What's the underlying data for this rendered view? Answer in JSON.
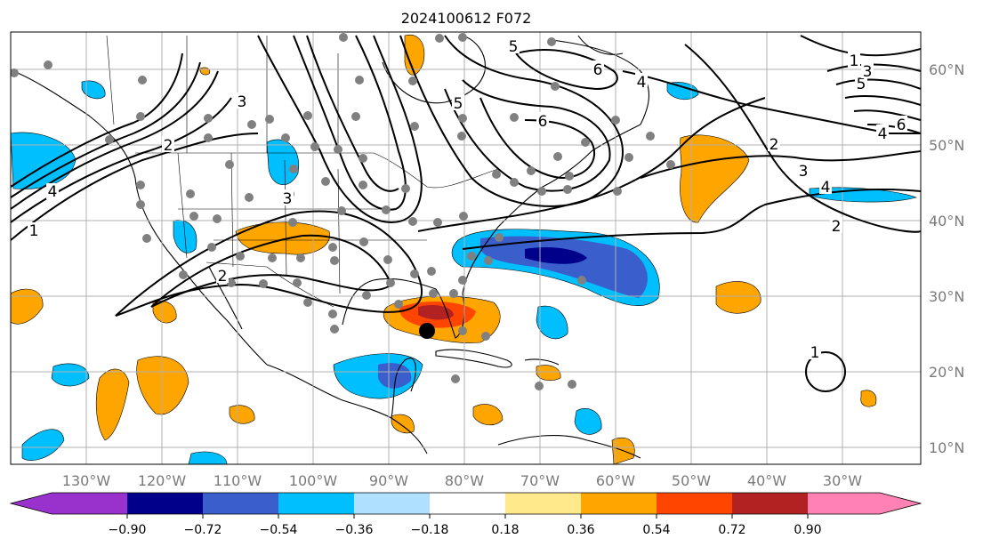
{
  "title": "2024100612 F072",
  "map": {
    "lon_labels": [
      "130°W",
      "120°W",
      "110°W",
      "100°W",
      "90°W",
      "80°W",
      "70°W",
      "60°W",
      "50°W",
      "40°W",
      "30°W"
    ],
    "lat_labels": [
      "60°N",
      "50°N",
      "40°N",
      "30°N",
      "20°N",
      "10°N"
    ],
    "contour_labels": [
      "1",
      "2",
      "3",
      "4",
      "5",
      "6"
    ],
    "colors": {
      "ocean": "#ffffff",
      "coast": "#000000",
      "grid": "#b0b0b0",
      "station": "#808080",
      "marker": "#000000"
    }
  },
  "colorbar": {
    "ticks": [
      "−0.90",
      "−0.72",
      "−0.54",
      "−0.36",
      "−0.18",
      "0.18",
      "0.36",
      "0.54",
      "0.72",
      "0.90"
    ],
    "colors": [
      "#9932cc",
      "#00008b",
      "#3a5fcd",
      "#00bfff",
      "#b0e0ff",
      "#ffffff",
      "#ffe98a",
      "#ffa500",
      "#ff4500",
      "#b22222",
      "#ff82b4"
    ]
  }
}
